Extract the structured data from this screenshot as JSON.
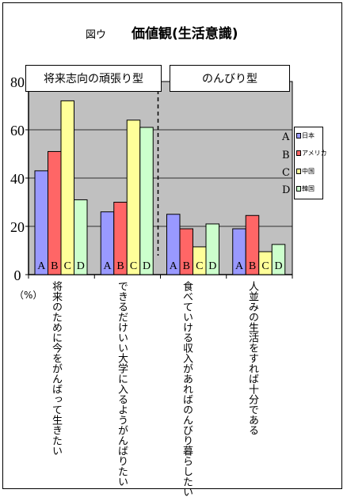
{
  "figure": {
    "label": "図ウ",
    "title": "価値観(生活意識)",
    "unit": "（%）",
    "group_boxes": [
      "将来志向の頑張り型",
      "のんびり型"
    ]
  },
  "side_letters": [
    "A",
    "B",
    "C",
    "D"
  ],
  "chart_data": {
    "type": "bar",
    "title": "価値観(生活意識)",
    "ylim": [
      0,
      80
    ],
    "yticks": [
      0,
      20,
      40,
      60,
      80
    ],
    "grid": true,
    "legend_position": "right",
    "bar_letters": [
      "A",
      "B",
      "C",
      "D"
    ],
    "categories": [
      "将来のために今をがんばって生きたい",
      "できるだけいい大学に入るようがんばりたい",
      "食べていける収入があればのんびり暮らしたい",
      "人並みの生活をすれば十分である"
    ],
    "series": [
      {
        "name": "日本",
        "color": "#9999ff",
        "values": [
          43,
          26,
          25,
          19
        ]
      },
      {
        "name": "アメリカ",
        "color": "#ff6666",
        "values": [
          51,
          30,
          19,
          24.5
        ]
      },
      {
        "name": "中国",
        "color": "#ffff99",
        "values": [
          72,
          64,
          11.5,
          9.5
        ]
      },
      {
        "name": "韓国",
        "color": "#ccffcc",
        "values": [
          31,
          61,
          21,
          12.5
        ]
      }
    ],
    "plot_background": "#c0c0c0"
  }
}
